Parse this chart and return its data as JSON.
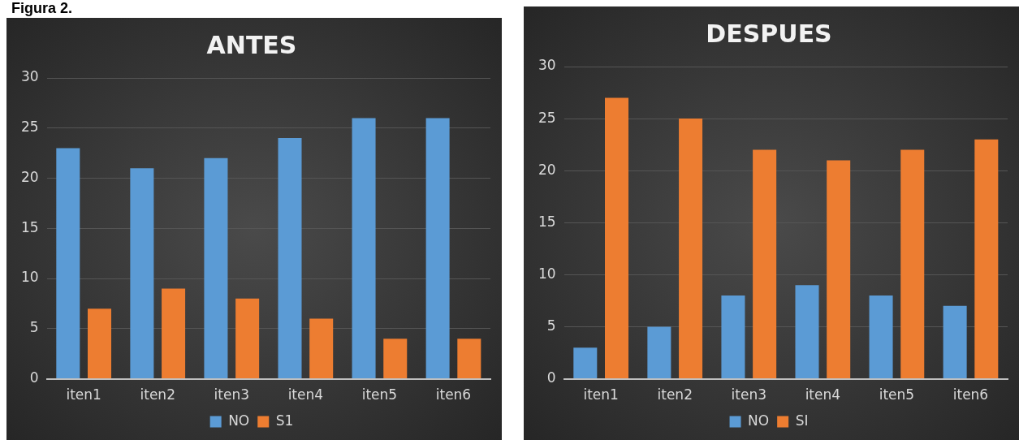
{
  "chart_data": [
    {
      "type": "bar",
      "title": "ANTES",
      "annotations": [
        "Figura 2."
      ],
      "categories": [
        "iten1",
        "iten2",
        "iten3",
        "iten4",
        "iten5",
        "iten6"
      ],
      "series": [
        {
          "name": "NO",
          "color": "#5b9bd5",
          "values": [
            23,
            21,
            22,
            24,
            26,
            26
          ]
        },
        {
          "name": "S1",
          "color": "#ed7d31",
          "values": [
            7,
            9,
            8,
            6,
            4,
            4
          ]
        }
      ],
      "ylim": [
        0,
        30
      ],
      "yticks": [
        0,
        5,
        10,
        15,
        20,
        25,
        30
      ],
      "grid": "y",
      "legend": "bottom"
    },
    {
      "type": "bar",
      "title": "DESPUES",
      "categories": [
        "iten1",
        "iten2",
        "iten3",
        "iten4",
        "iten5",
        "iten6"
      ],
      "series": [
        {
          "name": "NO",
          "color": "#5b9bd5",
          "values": [
            3,
            5,
            8,
            9,
            8,
            7
          ]
        },
        {
          "name": "SI",
          "color": "#ed7d31",
          "values": [
            27,
            25,
            22,
            21,
            22,
            23
          ]
        }
      ],
      "ylim": [
        0,
        30
      ],
      "yticks": [
        0,
        5,
        10,
        15,
        20,
        25,
        30
      ],
      "grid": "y",
      "legend": "bottom"
    }
  ]
}
